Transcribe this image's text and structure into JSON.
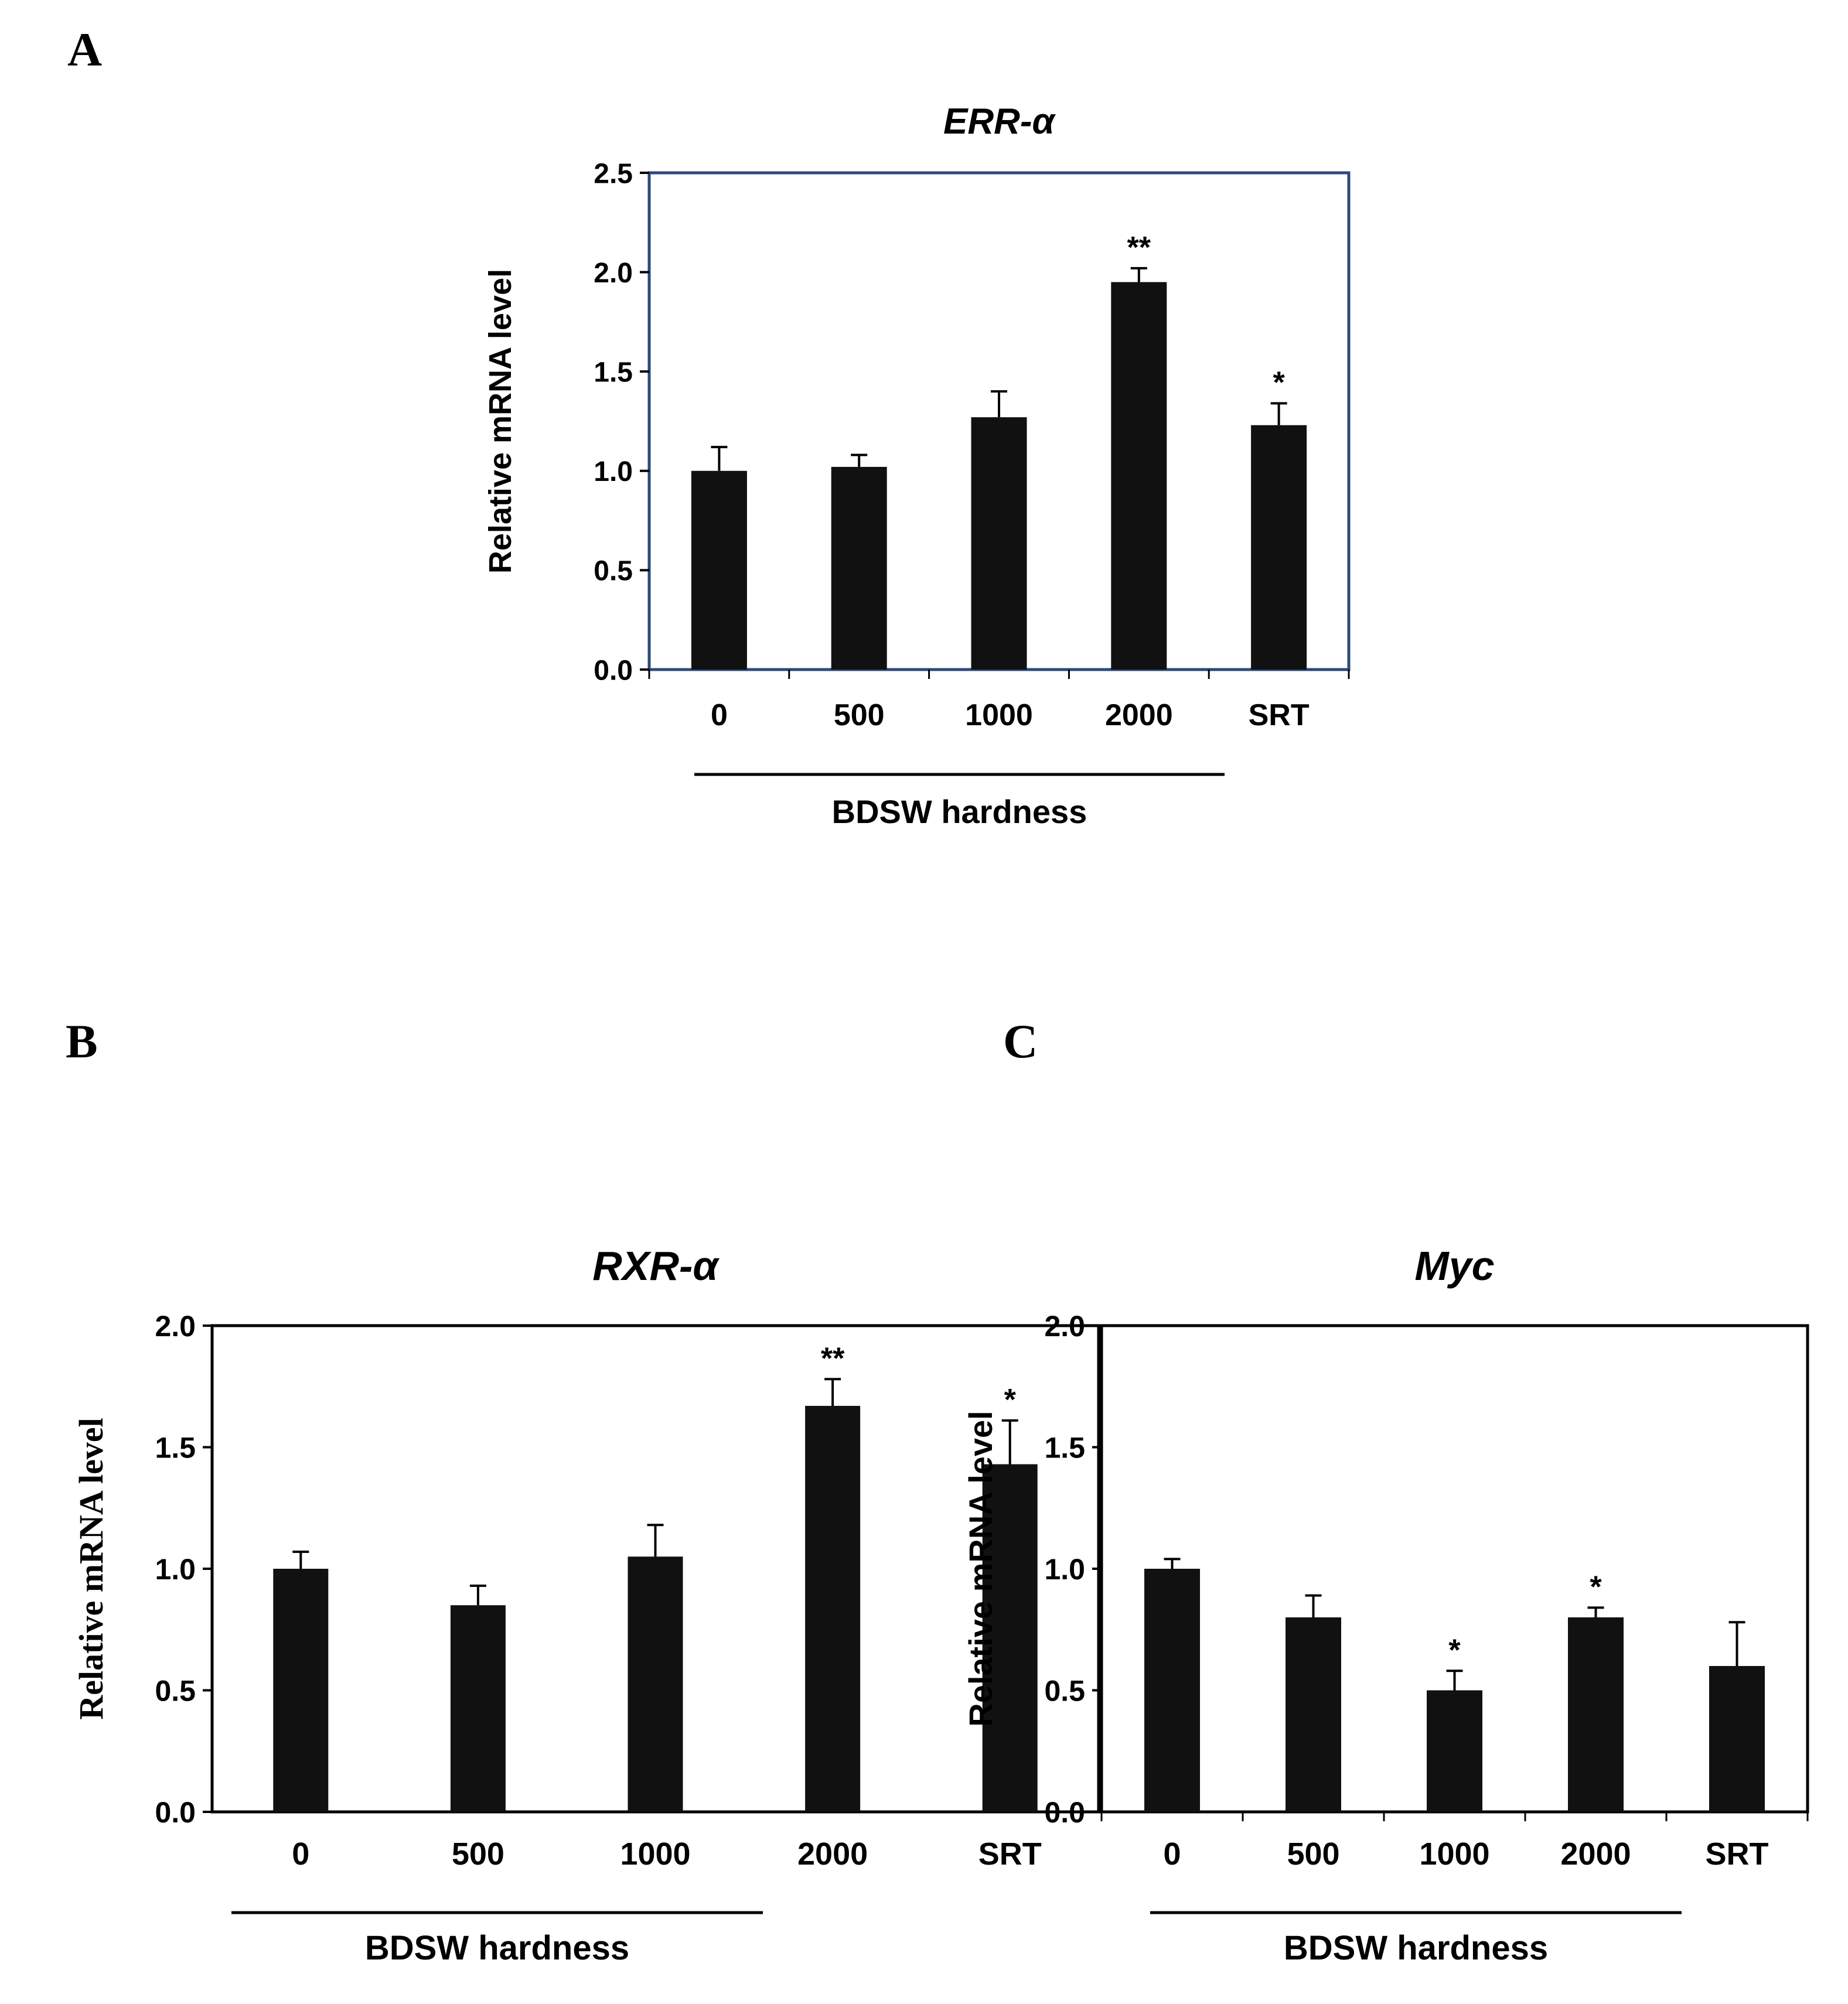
{
  "colors": {
    "bar": "#111111",
    "axis": "#000000",
    "frame_a": "#2b4a7a",
    "frame_bc": "#000000"
  },
  "chart_data": [
    {
      "panel": "A",
      "type": "bar",
      "title": "ERR-α",
      "ylabel": "Relative mRNA level",
      "xlabel": "BDSW hardness",
      "categories": [
        "0",
        "500",
        "1000",
        "2000",
        "SRT"
      ],
      "values": [
        1.0,
        1.02,
        1.27,
        1.95,
        1.23
      ],
      "errors": [
        0.12,
        0.06,
        0.13,
        0.07,
        0.11
      ],
      "significance": [
        "",
        "",
        "",
        "**",
        "*"
      ],
      "ylim": [
        0,
        2.5
      ],
      "yticks": [
        "0.0",
        "0.5",
        "1.0",
        "1.5",
        "2.0",
        "2.5"
      ],
      "grid": false
    },
    {
      "panel": "B",
      "type": "bar",
      "title": "RXR-α",
      "ylabel": "Relative mRNA level",
      "xlabel": "BDSW hardness",
      "categories": [
        "0",
        "500",
        "1000",
        "2000",
        "SRT"
      ],
      "values": [
        1.0,
        0.85,
        1.05,
        1.67,
        1.43
      ],
      "errors": [
        0.07,
        0.08,
        0.13,
        0.11,
        0.18
      ],
      "significance": [
        "",
        "",
        "",
        "**",
        "*"
      ],
      "ylim": [
        0,
        2.0
      ],
      "yticks": [
        "0.0",
        "0.5",
        "1.0",
        "1.5",
        "2.0"
      ],
      "grid": false
    },
    {
      "panel": "C",
      "type": "bar",
      "title": "Myc",
      "ylabel": "Relative mRNA level",
      "xlabel": "BDSW hardness",
      "categories": [
        "0",
        "500",
        "1000",
        "2000",
        "SRT"
      ],
      "values": [
        1.0,
        0.8,
        0.5,
        0.8,
        0.6
      ],
      "errors": [
        0.04,
        0.09,
        0.08,
        0.04,
        0.18
      ],
      "significance": [
        "",
        "",
        "*",
        "*",
        ""
      ],
      "ylim": [
        0,
        2.0
      ],
      "yticks": [
        "0.0",
        "0.5",
        "1.0",
        "1.5",
        "2.0"
      ],
      "grid": false
    }
  ]
}
